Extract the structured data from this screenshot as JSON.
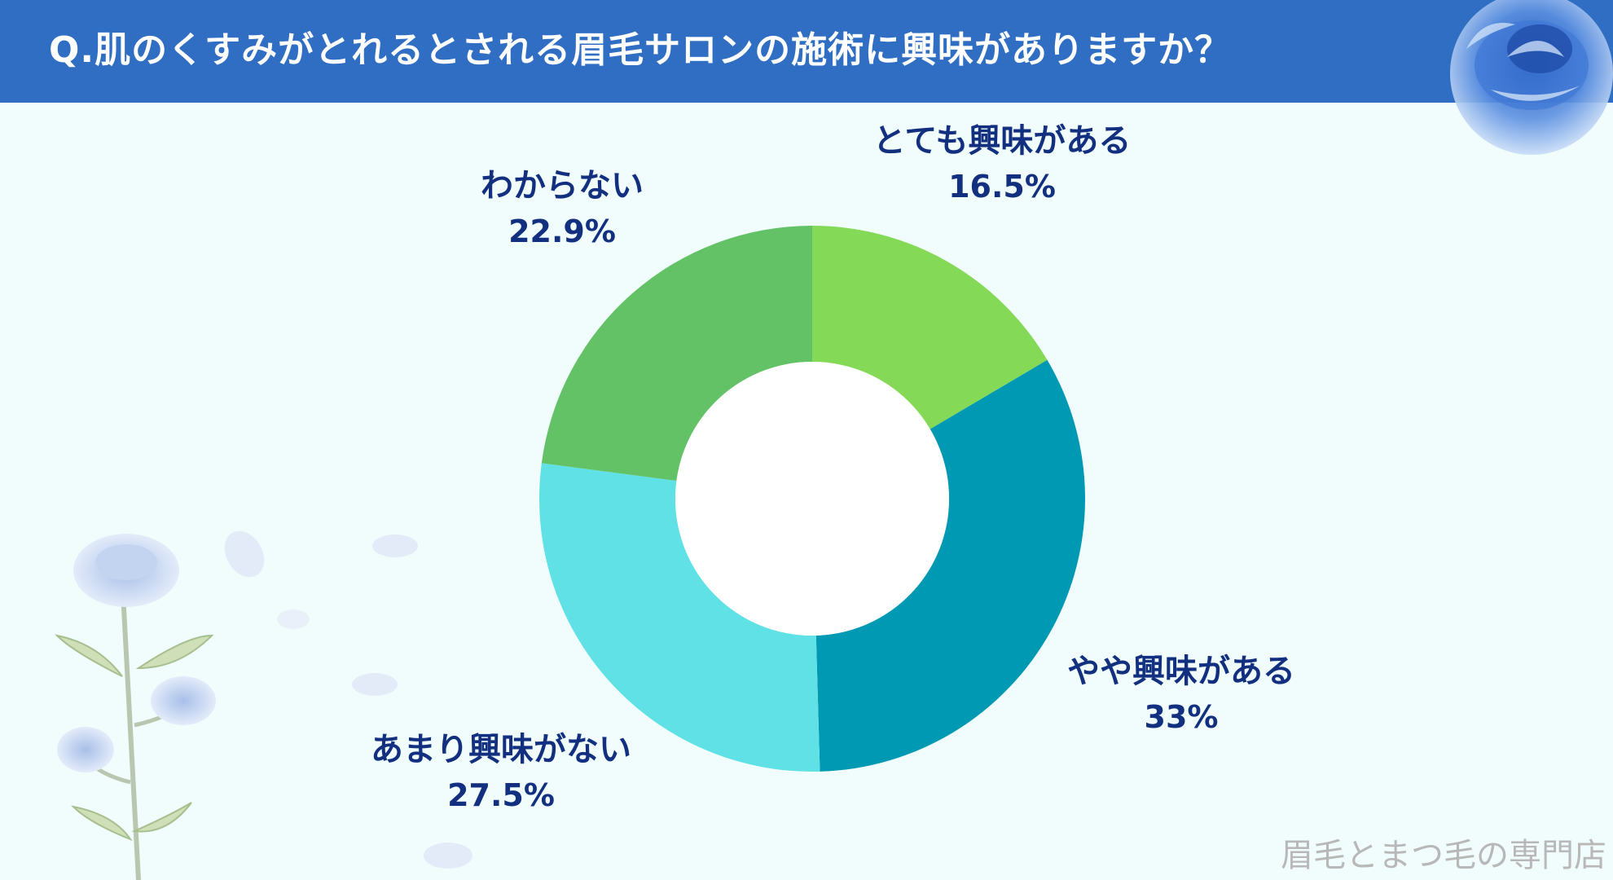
{
  "title": "Q.肌のくすみがとれるとされる眉毛サロンの施術に興味がありますか？",
  "brand": "眉毛とまつ毛の専門店",
  "colors": {
    "header": "#2f6ec2",
    "background": "#f1fdfd",
    "label_text": "#12307f"
  },
  "chart_data": {
    "type": "pie",
    "donut": true,
    "unit": "%",
    "slices": [
      {
        "label": "とても興味がある",
        "value": 16.5,
        "display": "16.5%",
        "color": "#84d957"
      },
      {
        "label": "やや興味がある",
        "value": 33,
        "display": "33%",
        "color": "#0099b4"
      },
      {
        "label": "あまり興味がない",
        "value": 27.5,
        "display": "27.5%",
        "color": "#5fe1e6"
      },
      {
        "label": "わからない",
        "value": 22.9,
        "display": "22.9%",
        "color": "#64c266"
      }
    ],
    "legend": "none"
  }
}
